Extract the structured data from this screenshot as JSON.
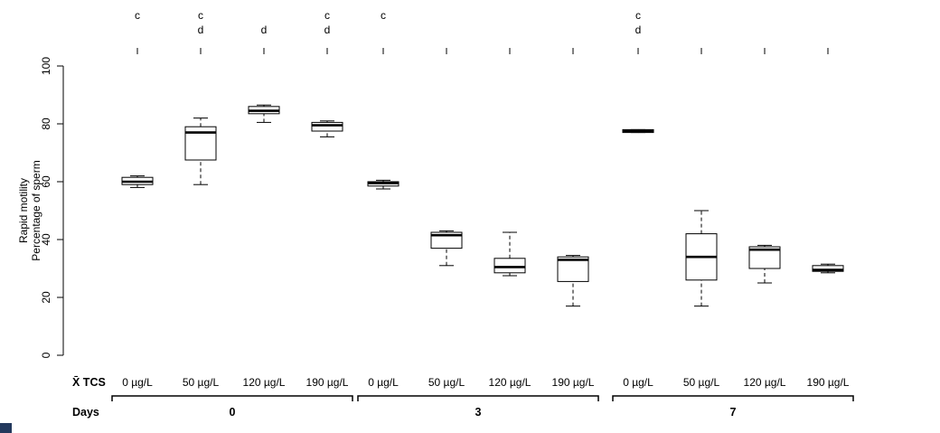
{
  "chart_data": {
    "type": "boxplot",
    "title": "",
    "ylabel_lines": [
      "Rapid motility",
      "Percentage of sperm"
    ],
    "ylim": [
      0,
      100
    ],
    "y_ticks": [
      0,
      20,
      40,
      60,
      80,
      100
    ],
    "grid": "off",
    "significance_letter_rows": [
      "c",
      "d"
    ],
    "x_axis_row_label": "X̄ TCS",
    "group_row_label": "Days",
    "groups": [
      {
        "day": "0",
        "boxes": [
          {
            "dose": "0 µg/L",
            "low": 58,
            "q1": 59,
            "median": 60,
            "q3": 61.5,
            "high": 62,
            "letters": [
              "c"
            ]
          },
          {
            "dose": "50 µg/L",
            "low": 59,
            "q1": 67.5,
            "median": 77,
            "q3": 79,
            "high": 82,
            "letters": [
              "c",
              "d"
            ]
          },
          {
            "dose": "120 µg/L",
            "low": 80.5,
            "q1": 83.5,
            "median": 84.5,
            "q3": 86,
            "high": 86.5,
            "letters": [
              "d"
            ]
          },
          {
            "dose": "190 µg/L",
            "low": 75.5,
            "q1": 77.5,
            "median": 79.5,
            "q3": 80.5,
            "high": 81,
            "letters": [
              "c",
              "d"
            ]
          }
        ]
      },
      {
        "day": "3",
        "boxes": [
          {
            "dose": "0 µg/L",
            "low": 57.5,
            "q1": 58.5,
            "median": 59.5,
            "q3": 60,
            "high": 60.5,
            "letters": [
              "c"
            ]
          },
          {
            "dose": "50 µg/L",
            "low": 31,
            "q1": 37,
            "median": 41.5,
            "q3": 42.5,
            "high": 43,
            "letters": []
          },
          {
            "dose": "120 µg/L",
            "low": 27.5,
            "q1": 28.5,
            "median": 30.5,
            "q3": 33.5,
            "high": 42.5,
            "letters": []
          },
          {
            "dose": "190 µg/L",
            "low": 17,
            "q1": 25.5,
            "median": 33,
            "q3": 34,
            "high": 34.5,
            "letters": []
          }
        ]
      },
      {
        "day": "7",
        "boxes": [
          {
            "dose": "0 µg/L",
            "low": 77,
            "q1": 77,
            "median": 77.5,
            "q3": 78,
            "high": 78,
            "letters": [
              "c",
              "d"
            ]
          },
          {
            "dose": "50 µg/L",
            "low": 17,
            "q1": 26,
            "median": 34,
            "q3": 42,
            "high": 50,
            "letters": []
          },
          {
            "dose": "120 µg/L",
            "low": 25,
            "q1": 30,
            "median": 36.5,
            "q3": 37.5,
            "high": 38,
            "letters": []
          },
          {
            "dose": "190 µg/L",
            "low": 28.5,
            "q1": 29,
            "median": 29.5,
            "q3": 31,
            "high": 31.5,
            "letters": []
          }
        ]
      }
    ],
    "colors": {
      "stroke": "#000000",
      "box_fill": "#ffffff",
      "corner_artifact": "#23395d"
    }
  }
}
